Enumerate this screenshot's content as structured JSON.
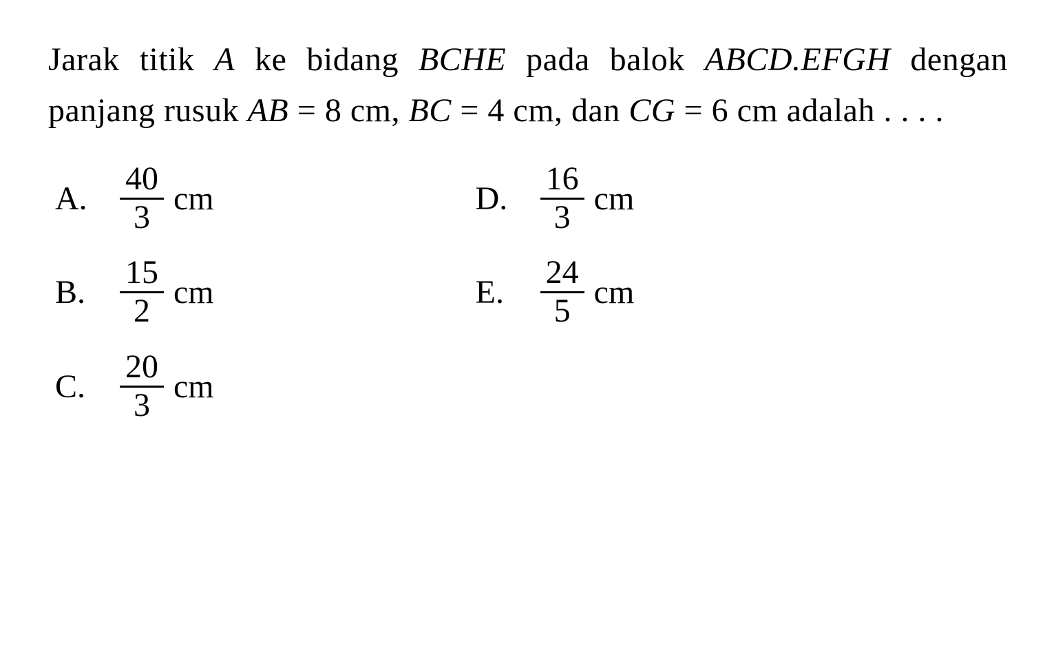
{
  "question": {
    "line1_part1": "Jarak titik ",
    "line1_A": "A",
    "line1_part2": " ke bidang ",
    "line1_BCHE": "BCHE",
    "line1_part3": " pada",
    "line2_part1": "balok ",
    "line2_ABCD": "ABCD.EFGH",
    "line2_part2": " dengan panjang rusuk",
    "line3_AB": "AB",
    "line3_eq1": " = 8 cm, ",
    "line3_BC": "BC",
    "line3_eq2": " = 4 cm, dan ",
    "line3_CG": "CG",
    "line3_eq3": " = 6 cm",
    "line4": "adalah . . . ."
  },
  "options": {
    "A": {
      "label": "A.",
      "num": "40",
      "den": "3",
      "unit": "cm"
    },
    "B": {
      "label": "B.",
      "num": "15",
      "den": "2",
      "unit": "cm"
    },
    "C": {
      "label": "C.",
      "num": "20",
      "den": "3",
      "unit": "cm"
    },
    "D": {
      "label": "D.",
      "num": "16",
      "den": "3",
      "unit": "cm"
    },
    "E": {
      "label": "E.",
      "num": "24",
      "den": "5",
      "unit": "cm"
    }
  },
  "styling": {
    "background_color": "#ffffff",
    "text_color": "#000000",
    "font_family": "Times New Roman",
    "question_fontsize": 48,
    "option_fontsize": 48,
    "fraction_border_width": 3
  }
}
